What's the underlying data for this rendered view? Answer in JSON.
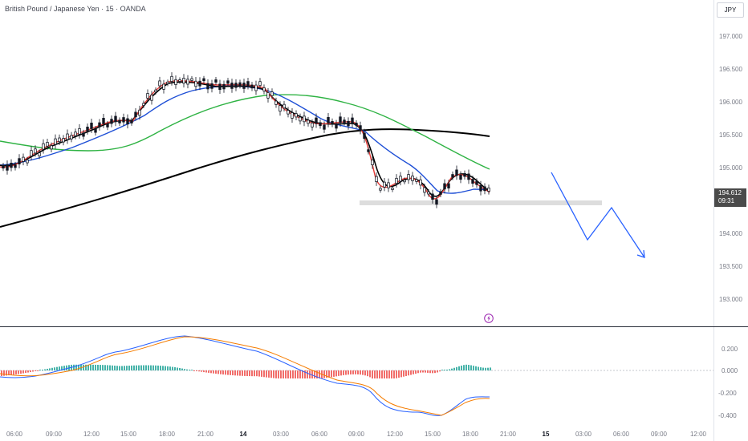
{
  "header": {
    "symbol_title": "British Pound / Japanese Yen · 15 · OANDA"
  },
  "price_scale": {
    "currency": "JPY",
    "labels": [
      "197.000",
      "196.500",
      "196.000",
      "195.500",
      "195.000",
      "194.000",
      "193.500",
      "193.000"
    ],
    "last_price": "194.612",
    "countdown": "09:31"
  },
  "oscillator_scale": {
    "labels": [
      "0.200",
      "0.000",
      "-0.200",
      "-0.400"
    ]
  },
  "time_axis": {
    "labels": [
      "06:00",
      "09:00",
      "12:00",
      "15:00",
      "18:00",
      "21:00",
      "14",
      "03:00",
      "06:00",
      "09:00",
      "12:00",
      "15:00",
      "18:00",
      "21:00",
      "15",
      "03:00",
      "06:00",
      "09:00",
      "12:00"
    ]
  },
  "colors": {
    "ema_fast": "#e53935",
    "ema_slow_black": "#000000",
    "ema_blue": "#1e4fd6",
    "ema_green": "#2fb344",
    "projection": "#2962ff",
    "hist_pos": "#26a69a",
    "hist_neg": "#ef5350"
  }
}
